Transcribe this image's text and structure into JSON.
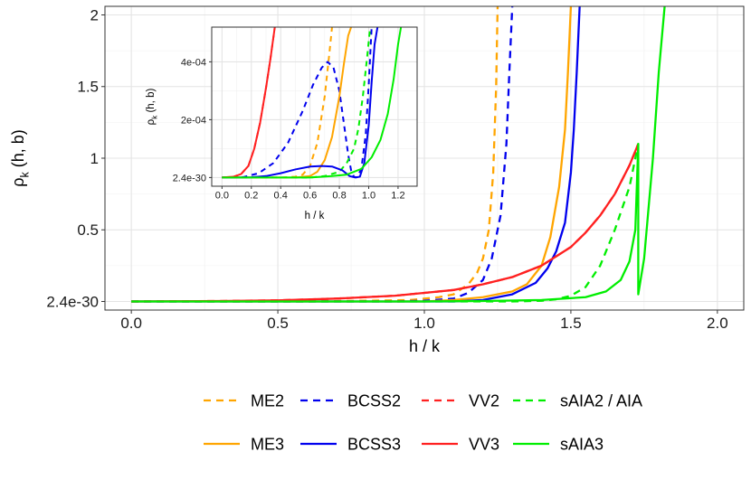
{
  "chart_data": [
    {
      "type": "line",
      "xlabel": "h / k",
      "ylabel_main": "ρ",
      "ylabel_sub": "k",
      "ylabel_rest": " (h, b)",
      "xlim": [
        -0.09,
        2.09
      ],
      "ylim": [
        -0.06,
        2.06
      ],
      "x_ticks": [
        0,
        0.5,
        1,
        1.5,
        2
      ],
      "x_tick_labels": [
        "0.0",
        "0.5",
        "1.0",
        "1.5",
        "2.0"
      ],
      "y_ticks": [
        0,
        0.5,
        1,
        1.5,
        2
      ],
      "y_tick_labels": [
        "2.4e-30",
        "0.5",
        "1",
        "1.5",
        "2"
      ],
      "grid": true,
      "series": [
        {
          "name": "ME2",
          "color": "#FFA500",
          "dash": "dashed",
          "x": [
            0,
            0.6,
            0.8,
            0.95,
            1.05,
            1.1,
            1.15,
            1.18,
            1.2,
            1.22,
            1.235,
            1.245,
            1.25
          ],
          "y": [
            0,
            0,
            0.005,
            0.01,
            0.03,
            0.05,
            0.12,
            0.2,
            0.3,
            0.5,
            0.9,
            1.5,
            2.06
          ]
        },
        {
          "name": "BCSS2",
          "color": "#0000EE",
          "dash": "dashed",
          "x": [
            0,
            0.9,
            1.0,
            1.1,
            1.15,
            1.2,
            1.23,
            1.26,
            1.28,
            1.29,
            1.3
          ],
          "y": [
            0,
            0,
            0.005,
            0.02,
            0.06,
            0.15,
            0.3,
            0.6,
            1.1,
            1.6,
            2.06
          ]
        },
        {
          "name": "VV2",
          "color": "#FF2020",
          "dash": "dashed",
          "x": [
            0,
            0.3,
            0.5,
            0.7,
            0.9,
            1.0,
            1.1,
            1.2,
            1.3,
            1.4,
            1.5,
            1.55,
            1.6,
            1.65,
            1.7,
            1.73
          ],
          "y": [
            0,
            0.003,
            0.008,
            0.02,
            0.04,
            0.06,
            0.08,
            0.12,
            0.17,
            0.25,
            0.38,
            0.48,
            0.6,
            0.75,
            0.95,
            1.1
          ]
        },
        {
          "name": "sAIA2 / AIA",
          "color": "#00EE00",
          "dash": "dashed",
          "x": [
            0,
            1.3,
            1.4,
            1.45,
            1.5,
            1.55,
            1.6,
            1.65,
            1.7,
            1.73
          ],
          "y": [
            0,
            0,
            0.005,
            0.015,
            0.04,
            0.1,
            0.25,
            0.5,
            0.8,
            1.1
          ]
        },
        {
          "name": "ME3",
          "color": "#FFA500",
          "dash": "solid",
          "x": [
            0,
            1.0,
            1.1,
            1.2,
            1.3,
            1.35,
            1.4,
            1.43,
            1.46,
            1.48,
            1.49,
            1.5
          ],
          "y": [
            0,
            0,
            0.01,
            0.03,
            0.07,
            0.12,
            0.25,
            0.45,
            0.8,
            1.2,
            1.6,
            2.06
          ]
        },
        {
          "name": "BCSS3",
          "color": "#0000EE",
          "dash": "solid",
          "x": [
            0,
            1.1,
            1.2,
            1.3,
            1.35,
            1.38,
            1.4,
            1.42,
            1.45,
            1.48,
            1.5,
            1.51,
            1.52,
            1.53
          ],
          "y": [
            0,
            0,
            0.01,
            0.05,
            0.1,
            0.13,
            0.18,
            0.23,
            0.35,
            0.55,
            0.9,
            1.2,
            1.6,
            2.06
          ]
        },
        {
          "name": "VV3",
          "color": "#FF2020",
          "dash": "solid",
          "x": [
            0,
            0.3,
            0.5,
            0.7,
            0.9,
            1.0,
            1.1,
            1.2,
            1.3,
            1.4,
            1.5,
            1.55,
            1.6,
            1.65,
            1.7,
            1.73
          ],
          "y": [
            0,
            0.003,
            0.008,
            0.02,
            0.04,
            0.06,
            0.08,
            0.12,
            0.17,
            0.25,
            0.38,
            0.48,
            0.6,
            0.75,
            0.95,
            1.1
          ]
        },
        {
          "name": "sAIA3",
          "color": "#00EE00",
          "dash": "solid",
          "x": [
            0,
            1.0,
            1.2,
            1.4,
            1.55,
            1.62,
            1.67,
            1.7,
            1.72,
            1.73,
            1.73,
            1.75,
            1.78,
            1.8,
            1.82
          ],
          "y": [
            0,
            0,
            0.003,
            0.01,
            0.03,
            0.07,
            0.15,
            0.28,
            0.5,
            1.1,
            0.05,
            0.3,
            1.0,
            1.6,
            2.06
          ]
        }
      ]
    },
    {
      "type": "line",
      "xlabel": "h / k",
      "ylabel_main": "ρ",
      "ylabel_sub": "k",
      "ylabel_rest": " (h, b)",
      "xlim": [
        -0.07,
        1.33
      ],
      "ylim": [
        -3e-05,
        0.00052
      ],
      "x_ticks": [
        0,
        0.2,
        0.4,
        0.6,
        0.8,
        1.0,
        1.2
      ],
      "x_tick_labels": [
        "0.0",
        "0.2",
        "0.4",
        "0.6",
        "0.8",
        "1.0",
        "1.2"
      ],
      "y_ticks": [
        0,
        0.0002,
        0.0004
      ],
      "y_tick_labels": [
        "2.4e-30",
        "2e-04",
        "4e-04"
      ],
      "grid": true,
      "series": [
        {
          "name": "ME2",
          "color": "#FFA500",
          "dash": "dashed",
          "x": [
            0,
            0.4,
            0.5,
            0.55,
            0.6,
            0.65,
            0.7,
            0.73,
            0.75
          ],
          "y": [
            0,
            0,
            3e-06,
            1e-05,
            4e-05,
            0.00012,
            0.00028,
            0.00042,
            0.00052
          ]
        },
        {
          "name": "BCSS2",
          "color": "#0000EE",
          "dash": "dashed",
          "x": [
            0,
            0.15,
            0.25,
            0.35,
            0.45,
            0.55,
            0.62,
            0.68,
            0.72,
            0.76,
            0.8,
            0.83,
            0.86,
            0.88,
            0.9,
            0.92,
            0.95,
            0.98,
            1.0,
            1.02
          ],
          "y": [
            0,
            2e-06,
            1.5e-05,
            5e-05,
            0.00012,
            0.00023,
            0.00032,
            0.00038,
            0.0004,
            0.00038,
            0.0003,
            0.00019,
            8e-05,
            2.5e-05,
            2e-06,
            1e-06,
            3e-05,
            0.00015,
            0.00032,
            0.00052
          ]
        },
        {
          "name": "VV2",
          "color": "#FF2020",
          "dash": "dashed",
          "x": [
            0,
            0.08,
            0.13,
            0.18,
            0.22,
            0.26,
            0.3,
            0.33,
            0.36
          ],
          "y": [
            0,
            3e-06,
            1.2e-05,
            4e-05,
            0.0001,
            0.00019,
            0.00031,
            0.00041,
            0.00052
          ]
        },
        {
          "name": "sAIA2 / AIA",
          "color": "#00EE00",
          "dash": "dashed",
          "x": [
            0,
            0.6,
            0.7,
            0.8,
            0.85,
            0.9,
            0.93,
            0.96,
            0.99,
            1.01
          ],
          "y": [
            0,
            0,
            5e-06,
            2e-05,
            5e-05,
            0.0001,
            0.00017,
            0.00028,
            0.00042,
            0.00052
          ]
        },
        {
          "name": "ME3",
          "color": "#FFA500",
          "dash": "solid",
          "x": [
            0,
            0.5,
            0.6,
            0.65,
            0.7,
            0.75,
            0.8,
            0.83,
            0.86,
            0.88
          ],
          "y": [
            0,
            0,
            5e-06,
            2e-05,
            6e-05,
            0.00014,
            0.00028,
            0.00039,
            0.00049,
            0.00052
          ]
        },
        {
          "name": "BCSS3",
          "color": "#0000EE",
          "dash": "solid",
          "x": [
            0,
            0.2,
            0.3,
            0.4,
            0.5,
            0.6,
            0.68,
            0.75,
            0.82,
            0.87,
            0.91,
            0.94,
            0.97,
            1.0,
            1.02,
            1.04,
            1.06
          ],
          "y": [
            0,
            1e-06,
            5e-06,
            1.5e-05,
            2.8e-05,
            3.8e-05,
            4e-05,
            3.8e-05,
            2.5e-05,
            5e-06,
            2e-07,
            3e-06,
            5e-05,
            0.00018,
            0.00033,
            0.00046,
            0.00052
          ]
        },
        {
          "name": "VV3",
          "color": "#FF2020",
          "dash": "solid",
          "x": [
            0,
            0.08,
            0.13,
            0.18,
            0.22,
            0.26,
            0.3,
            0.33,
            0.36
          ],
          "y": [
            0,
            3e-06,
            1.2e-05,
            4e-05,
            0.0001,
            0.00019,
            0.00031,
            0.00041,
            0.00052
          ]
        },
        {
          "name": "sAIA3",
          "color": "#00EE00",
          "dash": "solid",
          "x": [
            0,
            0.6,
            0.75,
            0.85,
            0.95,
            1.02,
            1.08,
            1.13,
            1.17,
            1.2,
            1.22
          ],
          "y": [
            0,
            0,
            5e-06,
            1e-05,
            3e-05,
            7e-05,
            0.00013,
            0.00022,
            0.00034,
            0.00046,
            0.00052
          ]
        }
      ]
    }
  ],
  "legend": {
    "rows": [
      [
        {
          "name": "ME2",
          "color": "#FFA500",
          "dash": "dashed"
        },
        {
          "name": "BCSS2",
          "color": "#0000EE",
          "dash": "dashed"
        },
        {
          "name": "VV2",
          "color": "#FF2020",
          "dash": "dashed"
        },
        {
          "name": "sAIA2 / AIA",
          "color": "#00EE00",
          "dash": "dashed"
        }
      ],
      [
        {
          "name": "ME3",
          "color": "#FFA500",
          "dash": "solid"
        },
        {
          "name": "BCSS3",
          "color": "#0000EE",
          "dash": "solid"
        },
        {
          "name": "VV3",
          "color": "#FF2020",
          "dash": "solid"
        },
        {
          "name": "sAIA3",
          "color": "#00EE00",
          "dash": "solid"
        }
      ]
    ]
  }
}
